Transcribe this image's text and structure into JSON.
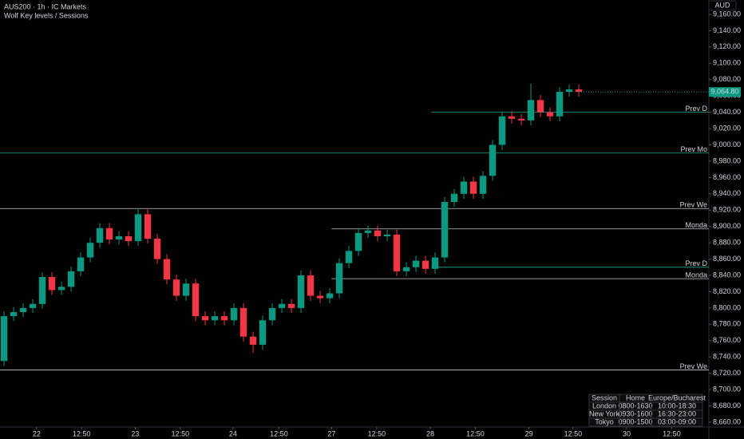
{
  "chart_data": {
    "type": "candlestick",
    "title": "AUS200 · 1h · IC Markets",
    "subtitle": "Wolf Key levels / Sessions",
    "currency": "AUD",
    "colors": {
      "up": "#089981",
      "down": "#f23645"
    },
    "grid": false,
    "open": [
      8735,
      8790,
      8795,
      8800,
      8805,
      8838,
      8822,
      8826,
      8845,
      8862,
      8880,
      8898,
      8884,
      8888,
      8882,
      8915,
      8885,
      8860,
      8835,
      8815,
      8830,
      8790,
      8785,
      8790,
      8785,
      8800,
      8765,
      8755,
      8785,
      8800,
      8805,
      8800,
      8840,
      8815,
      8812,
      8818,
      8855,
      8870,
      8892,
      8895,
      8888,
      8890,
      8845,
      8850,
      8858,
      8848,
      8862,
      8930,
      8940,
      8955,
      8940,
      8962,
      9000,
      9035,
      9032,
      9030,
      9055,
      9040,
      9035,
      9065,
      9068
    ],
    "high": [
      8796,
      8801,
      8806,
      8811,
      8844,
      8844,
      8832,
      8851,
      8868,
      8886,
      8904,
      8904,
      8894,
      8894,
      8922,
      8921,
      8891,
      8866,
      8841,
      8836,
      8836,
      8796,
      8796,
      8796,
      8806,
      8806,
      8771,
      8791,
      8806,
      8811,
      8811,
      8846,
      8846,
      8821,
      8824,
      8861,
      8876,
      8898,
      8901,
      8901,
      8896,
      8896,
      8856,
      8864,
      8864,
      8868,
      8936,
      8946,
      8961,
      8961,
      8968,
      9006,
      9041,
      9041,
      9038,
      9075,
      9061,
      9046,
      9071,
      9074,
      9074
    ],
    "low": [
      8729,
      8784,
      8789,
      8794,
      8799,
      8816,
      8816,
      8820,
      8839,
      8856,
      8874,
      8878,
      8878,
      8876,
      8876,
      8879,
      8854,
      8829,
      8809,
      8809,
      8784,
      8779,
      8779,
      8779,
      8779,
      8759,
      8745,
      8749,
      8779,
      8794,
      8794,
      8794,
      8809,
      8806,
      8806,
      8812,
      8849,
      8864,
      8886,
      8882,
      8882,
      8839,
      8839,
      8844,
      8842,
      8842,
      8856,
      8924,
      8934,
      8934,
      8934,
      8956,
      8994,
      9026,
      9024,
      9024,
      9034,
      9029,
      9029,
      9059,
      9059
    ],
    "close": [
      8790,
      8795,
      8800,
      8805,
      8838,
      8822,
      8826,
      8845,
      8862,
      8880,
      8898,
      8884,
      8888,
      8882,
      8915,
      8885,
      8860,
      8835,
      8815,
      8830,
      8790,
      8785,
      8790,
      8785,
      8800,
      8765,
      8755,
      8785,
      8800,
      8805,
      8800,
      8840,
      8815,
      8812,
      8818,
      8855,
      8870,
      8892,
      8895,
      8888,
      8890,
      8845,
      8850,
      8858,
      8848,
      8862,
      8930,
      8940,
      8955,
      8940,
      8962,
      9000,
      9035,
      9032,
      9030,
      9055,
      9040,
      9035,
      9065,
      9068,
      9065
    ],
    "last_price": {
      "value": 9064.8,
      "label": "9,064.80"
    },
    "levels": [
      {
        "label": "Prev D",
        "value": 9040,
        "color": "#22ab94",
        "from": 44.6
      },
      {
        "label": "Prev Mo",
        "value": 8990,
        "color": "#22ab94",
        "from": -0.42
      },
      {
        "label": "Prev We",
        "value": 8922,
        "color": "#c8c8c8",
        "from": -0.42
      },
      {
        "label": "Monda",
        "value": 8897,
        "color": "#c8c8c8",
        "from": 34.2
      },
      {
        "label": "Prev D",
        "value": 8850,
        "color": "#22ab94",
        "from": 44.6
      },
      {
        "label": "Monda",
        "value": 8836,
        "color": "#c8c8c8",
        "from": 34.2
      },
      {
        "label": "Prev We",
        "value": 8724,
        "color": "#c8c8c8",
        "from": -0.42
      }
    ],
    "xlim": [
      -0.42,
      73.58
    ],
    "xticks": [
      {
        "value": 3.4,
        "label": "22"
      },
      {
        "value": 8.1,
        "label": "12:50"
      },
      {
        "value": 13.7,
        "label": "23"
      },
      {
        "value": 18.4,
        "label": "12:50"
      },
      {
        "value": 23.9,
        "label": "24"
      },
      {
        "value": 28.7,
        "label": "12:50"
      },
      {
        "value": 34.2,
        "label": "27"
      },
      {
        "value": 38.9,
        "label": "12:50"
      },
      {
        "value": 44.5,
        "label": "28"
      },
      {
        "value": 49.2,
        "label": "12:50"
      },
      {
        "value": 54.8,
        "label": "29"
      },
      {
        "value": 59.4,
        "label": "12:50"
      },
      {
        "value": 65,
        "label": "30"
      },
      {
        "value": 69.7,
        "label": "12:50"
      }
    ],
    "ylim": [
      8654.1,
      9177.6
    ],
    "yticks": [
      {
        "value": 9160,
        "label": "9,160.00"
      },
      {
        "value": 9140,
        "label": "9,140.00"
      },
      {
        "value": 9120,
        "label": "9,120.00"
      },
      {
        "value": 9100,
        "label": "9,100.00"
      },
      {
        "value": 9080,
        "label": "9,080.00"
      },
      {
        "value": 9060,
        "label": "9,060.00"
      },
      {
        "value": 9040,
        "label": "9,040.00"
      },
      {
        "value": 9020,
        "label": "9,020.00"
      },
      {
        "value": 9000,
        "label": "9,000.00"
      },
      {
        "value": 8980,
        "label": "8,980.00"
      },
      {
        "value": 8960,
        "label": "8,960.00"
      },
      {
        "value": 8940,
        "label": "8,940.00"
      },
      {
        "value": 8920,
        "label": "8,920.00"
      },
      {
        "value": 8900,
        "label": "8,900.00"
      },
      {
        "value": 8880,
        "label": "8,880.00"
      },
      {
        "value": 8860,
        "label": "8,860.00"
      },
      {
        "value": 8840,
        "label": "8,840.00"
      },
      {
        "value": 8820,
        "label": "8,820.00"
      },
      {
        "value": 8800,
        "label": "8,800.00"
      },
      {
        "value": 8780,
        "label": "8,780.00"
      },
      {
        "value": 8760,
        "label": "8,760.00"
      },
      {
        "value": 8740,
        "label": "8,740.00"
      },
      {
        "value": 8720,
        "label": "8,720.00"
      },
      {
        "value": 8700,
        "label": "8,700.00"
      },
      {
        "value": 8680,
        "label": "8,680.00"
      },
      {
        "value": 8660,
        "label": "8,660.00"
      }
    ],
    "sessions_table": {
      "header": [
        "Session",
        "Home",
        "Europe/Bucharest"
      ],
      "rows": [
        [
          "London",
          "0800-1630",
          "10:00-18:30"
        ],
        [
          "New York",
          "0930-1600",
          "16:30-23:00"
        ],
        [
          "Tokyo",
          "0900-1500",
          "03:00-09:00"
        ]
      ]
    }
  }
}
